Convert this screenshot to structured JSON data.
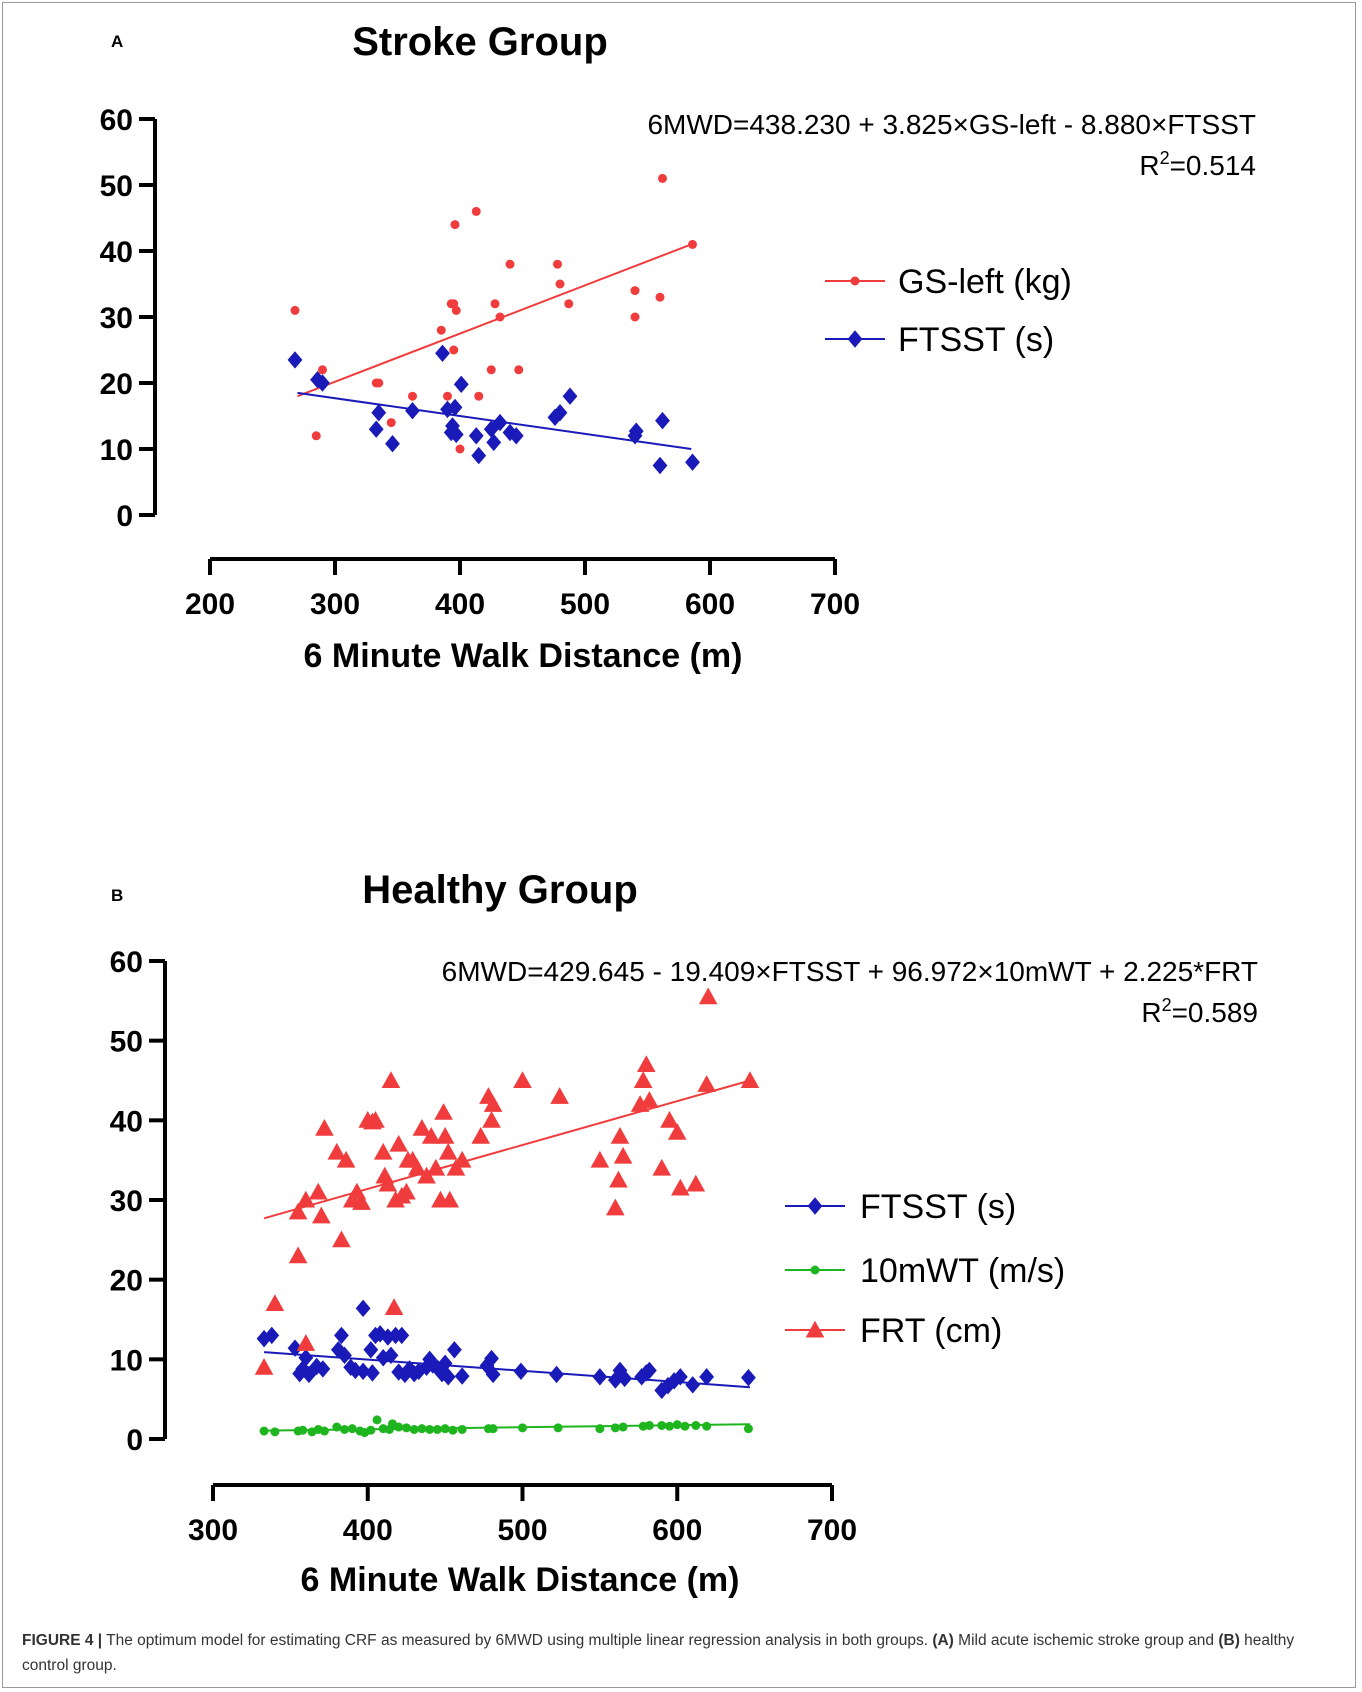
{
  "caption": {
    "label": "FIGURE 4 |",
    "text_1": " The optimum model for estimating CRF as measured by 6MWD using multiple linear regression analysis in both groups. ",
    "ref_a": "(A)",
    "text_2": " Mild acute ischemic stroke group and ",
    "ref_b": "(B)",
    "text_3": " healthy control group."
  },
  "chart_data": [
    {
      "panel": "A",
      "type": "scatter",
      "title": "Stroke Group",
      "xlabel": "6 Minute Walk Distance (m)",
      "ylabel": "",
      "xlim": [
        200,
        700
      ],
      "ylim": [
        0,
        60
      ],
      "xticks": [
        200,
        300,
        400,
        500,
        600,
        700
      ],
      "yticks": [
        0,
        10,
        20,
        30,
        40,
        50,
        60
      ],
      "equation": "6MWD=438.230 + 3.825×GS-left - 8.880×FTSST",
      "r2_prefix": "R",
      "r2_sup": "2",
      "r2_value": "=0.514",
      "legend_position": "right",
      "series": [
        {
          "name": "GS-left (kg)",
          "color": "#f03c3c",
          "marker": "circle",
          "fit": [
            [
              270,
              18
            ],
            [
              585,
              41
            ]
          ],
          "points": [
            [
              268,
              31
            ],
            [
              285,
              12
            ],
            [
              290,
              22
            ],
            [
              333,
              20
            ],
            [
              335,
              20
            ],
            [
              345,
              14
            ],
            [
              362,
              18
            ],
            [
              385,
              28
            ],
            [
              390,
              18
            ],
            [
              393,
              32
            ],
            [
              395,
              32
            ],
            [
              395,
              25
            ],
            [
              396,
              44
            ],
            [
              397,
              31
            ],
            [
              400,
              10
            ],
            [
              413,
              46
            ],
            [
              415,
              18
            ],
            [
              425,
              22
            ],
            [
              428,
              32
            ],
            [
              432,
              30
            ],
            [
              440,
              38
            ],
            [
              447,
              22
            ],
            [
              478,
              38
            ],
            [
              480,
              35
            ],
            [
              487,
              32
            ],
            [
              540,
              34
            ],
            [
              540,
              30
            ],
            [
              560,
              33
            ],
            [
              562,
              51
            ],
            [
              586,
              41
            ]
          ]
        },
        {
          "name": "FTSST (s)",
          "color": "#1a1ab8",
          "marker": "diamond",
          "fit": [
            [
              270,
              18.5
            ],
            [
              585,
              10
            ]
          ],
          "points": [
            [
              268,
              23.5
            ],
            [
              286,
              20.5
            ],
            [
              290,
              20
            ],
            [
              333,
              13
            ],
            [
              335,
              15.5
            ],
            [
              346,
              10.8
            ],
            [
              362,
              15.8
            ],
            [
              386,
              24.5
            ],
            [
              390,
              16
            ],
            [
              393,
              12.5
            ],
            [
              394,
              13.5
            ],
            [
              396,
              16.3
            ],
            [
              397,
              12.2
            ],
            [
              401,
              19.8
            ],
            [
              413,
              12
            ],
            [
              415,
              9
            ],
            [
              425,
              13
            ],
            [
              427,
              11
            ],
            [
              432,
              14
            ],
            [
              440,
              12.5
            ],
            [
              445,
              12
            ],
            [
              476,
              14.8
            ],
            [
              480,
              15.5
            ],
            [
              488,
              18
            ],
            [
              540,
              12
            ],
            [
              541,
              12.7
            ],
            [
              560,
              7.5
            ],
            [
              562,
              14.3
            ],
            [
              586,
              8
            ]
          ]
        }
      ]
    },
    {
      "panel": "B",
      "type": "scatter",
      "title": "Healthy Group",
      "xlabel": "6 Minute Walk Distance (m)",
      "ylabel": "",
      "xlim": [
        300,
        700
      ],
      "ylim": [
        0,
        60
      ],
      "xticks": [
        300,
        400,
        500,
        600,
        700
      ],
      "yticks": [
        0,
        10,
        20,
        30,
        40,
        50,
        60
      ],
      "equation": "6MWD=429.645 - 19.409×FTSST + 96.972×10mWT + 2.225*FRT",
      "r2_prefix": "R",
      "r2_sup": "2",
      "r2_value": "=0.589",
      "legend_position": "right",
      "series": [
        {
          "name": "FTSST (s)",
          "color": "#1a1ab8",
          "marker": "diamond",
          "fit": [
            [
              333,
              10.9
            ],
            [
              647,
              6.5
            ]
          ],
          "points": [
            [
              333,
              12.6
            ],
            [
              338,
              13
            ],
            [
              353,
              11.4
            ],
            [
              356,
              8.2
            ],
            [
              358,
              8.8
            ],
            [
              360,
              10.2
            ],
            [
              362,
              8.1
            ],
            [
              367,
              9.1
            ],
            [
              371,
              8.8
            ],
            [
              381,
              11.2
            ],
            [
              383,
              13
            ],
            [
              385,
              10.5
            ],
            [
              389,
              9
            ],
            [
              392,
              8.6
            ],
            [
              397,
              16.4
            ],
            [
              397,
              8.5
            ],
            [
              402,
              11.2
            ],
            [
              403,
              8.3
            ],
            [
              405,
              13
            ],
            [
              408,
              13.2
            ],
            [
              410,
              10.2
            ],
            [
              413,
              12.8
            ],
            [
              415,
              10.5
            ],
            [
              418,
              13
            ],
            [
              420,
              8.4
            ],
            [
              422,
              13
            ],
            [
              424,
              8.1
            ],
            [
              427,
              8.8
            ],
            [
              430,
              8.2
            ],
            [
              433,
              8.5
            ],
            [
              438,
              9
            ],
            [
              440,
              10
            ],
            [
              442,
              9.3
            ],
            [
              445,
              8.9
            ],
            [
              448,
              8.2
            ],
            [
              450,
              9.5
            ],
            [
              452,
              7.8
            ],
            [
              456,
              11.2
            ],
            [
              461,
              7.9
            ],
            [
              477,
              9.2
            ],
            [
              480,
              10.1
            ],
            [
              481,
              8.1
            ],
            [
              499,
              8.5
            ],
            [
              522,
              8.1
            ],
            [
              550,
              7.8
            ],
            [
              560,
              7.4
            ],
            [
              563,
              8.6
            ],
            [
              566,
              7.6
            ],
            [
              577,
              7.8
            ],
            [
              580,
              8.3
            ],
            [
              582,
              8.6
            ],
            [
              590,
              6.1
            ],
            [
              594,
              6.7
            ],
            [
              598,
              7.3
            ],
            [
              602,
              7.8
            ],
            [
              610,
              6.8
            ],
            [
              619,
              7.8
            ],
            [
              646,
              7.7
            ]
          ]
        },
        {
          "name": "10mWT (m/s)",
          "color": "#1fb51f",
          "marker": "circle",
          "fit": [
            [
              333,
              1.05
            ],
            [
              647,
              1.85
            ]
          ],
          "points": [
            [
              333,
              1
            ],
            [
              340,
              0.9
            ],
            [
              355,
              1
            ],
            [
              358,
              1.1
            ],
            [
              364,
              0.9
            ],
            [
              368,
              1.2
            ],
            [
              372,
              1
            ],
            [
              380,
              1.5
            ],
            [
              385,
              1.2
            ],
            [
              390,
              1.3
            ],
            [
              395,
              1
            ],
            [
              398,
              0.8
            ],
            [
              402,
              1.1
            ],
            [
              406,
              2.4
            ],
            [
              410,
              1.3
            ],
            [
              414,
              1.2
            ],
            [
              416,
              1.9
            ],
            [
              420,
              1.5
            ],
            [
              425,
              1.4
            ],
            [
              430,
              1.2
            ],
            [
              435,
              1.3
            ],
            [
              440,
              1.2
            ],
            [
              445,
              1.2
            ],
            [
              450,
              1.3
            ],
            [
              455,
              1.1
            ],
            [
              461,
              1.2
            ],
            [
              478,
              1.3
            ],
            [
              481,
              1.3
            ],
            [
              500,
              1.4
            ],
            [
              523,
              1.4
            ],
            [
              550,
              1.3
            ],
            [
              560,
              1.4
            ],
            [
              565,
              1.5
            ],
            [
              578,
              1.6
            ],
            [
              582,
              1.7
            ],
            [
              590,
              1.7
            ],
            [
              595,
              1.6
            ],
            [
              600,
              1.8
            ],
            [
              605,
              1.6
            ],
            [
              612,
              1.7
            ],
            [
              619,
              1.6
            ],
            [
              646,
              1.3
            ]
          ]
        },
        {
          "name": "FRT (cm)",
          "color": "#f03c3c",
          "marker": "triangle",
          "fit": [
            [
              333,
              27.7
            ],
            [
              647,
              45
            ]
          ],
          "points": [
            [
              333,
              9
            ],
            [
              340,
              17
            ],
            [
              355,
              23
            ],
            [
              355,
              28.5
            ],
            [
              360,
              12
            ],
            [
              360,
              30
            ],
            [
              368,
              31
            ],
            [
              370,
              28
            ],
            [
              372,
              39
            ],
            [
              380,
              36
            ],
            [
              383,
              25
            ],
            [
              386,
              35
            ],
            [
              390,
              30
            ],
            [
              393,
              31
            ],
            [
              396,
              29.7
            ],
            [
              400,
              40
            ],
            [
              403,
              39.8
            ],
            [
              405,
              40
            ],
            [
              410,
              36
            ],
            [
              411,
              33
            ],
            [
              413,
              32
            ],
            [
              415,
              45
            ],
            [
              417,
              16.5
            ],
            [
              418,
              30
            ],
            [
              420,
              37
            ],
            [
              422,
              30.5
            ],
            [
              425,
              31
            ],
            [
              426,
              35
            ],
            [
              429,
              35
            ],
            [
              432,
              34
            ],
            [
              435,
              39
            ],
            [
              438,
              33
            ],
            [
              441,
              38
            ],
            [
              444,
              34
            ],
            [
              447,
              30
            ],
            [
              449,
              41
            ],
            [
              450,
              38
            ],
            [
              452,
              36
            ],
            [
              453,
              30
            ],
            [
              457,
              34
            ],
            [
              461,
              35
            ],
            [
              473,
              38
            ],
            [
              478,
              43
            ],
            [
              480,
              40
            ],
            [
              481,
              42
            ],
            [
              500,
              45
            ],
            [
              524,
              43
            ],
            [
              550,
              35
            ],
            [
              560,
              29
            ],
            [
              562,
              32.5
            ],
            [
              563,
              38
            ],
            [
              565,
              35.5
            ],
            [
              576,
              42
            ],
            [
              578,
              45
            ],
            [
              580,
              47
            ],
            [
              582,
              42.5
            ],
            [
              590,
              34
            ],
            [
              595,
              40
            ],
            [
              600,
              38.5
            ],
            [
              602,
              31.5
            ],
            [
              612,
              32
            ],
            [
              619,
              44.5
            ],
            [
              620,
              55.5
            ],
            [
              647,
              45
            ]
          ]
        }
      ]
    }
  ]
}
